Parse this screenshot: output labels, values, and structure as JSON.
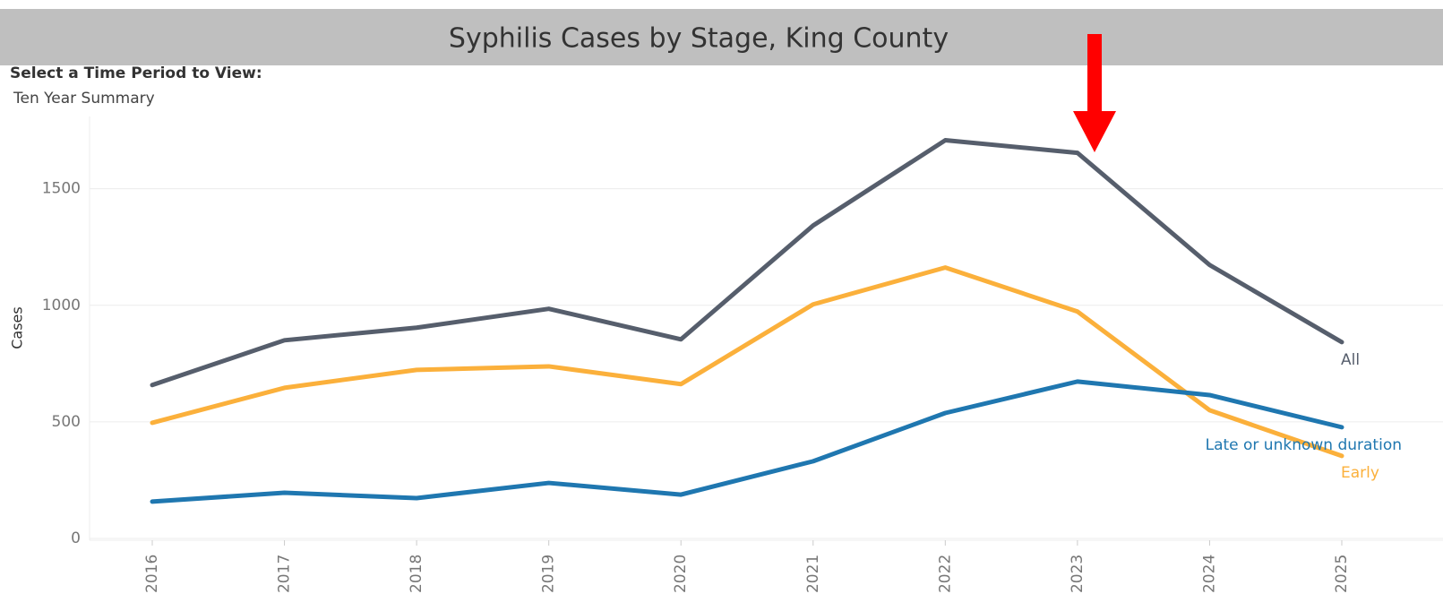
{
  "header": {
    "title": "Syphilis Cases by Stage, King County"
  },
  "filter": {
    "label": "Select a Time Period to View:",
    "value": "Ten Year Summary"
  },
  "chart_data": {
    "type": "line",
    "y_label": "Cases",
    "categories": [
      "2016",
      "2017",
      "2018",
      "2019",
      "2020",
      "2021",
      "2022",
      "2023",
      "2024",
      "2025"
    ],
    "series": [
      {
        "name": "All",
        "color": "#565e6c",
        "values": [
          658,
          850,
          904,
          985,
          854,
          1342,
          1708,
          1654,
          1173,
          842
        ]
      },
      {
        "name": "Early",
        "color": "#fbb03b",
        "values": [
          496,
          646,
          723,
          738,
          662,
          1004,
          1162,
          973,
          550,
          354
        ]
      },
      {
        "name": "Late or unknown duration",
        "color": "#1f77b0",
        "values": [
          158,
          196,
          173,
          238,
          188,
          331,
          538,
          673,
          615,
          477
        ]
      }
    ],
    "ylim": [
      0,
      1810
    ],
    "yticks": [
      0,
      500,
      1000,
      1500
    ],
    "grid": true
  }
}
